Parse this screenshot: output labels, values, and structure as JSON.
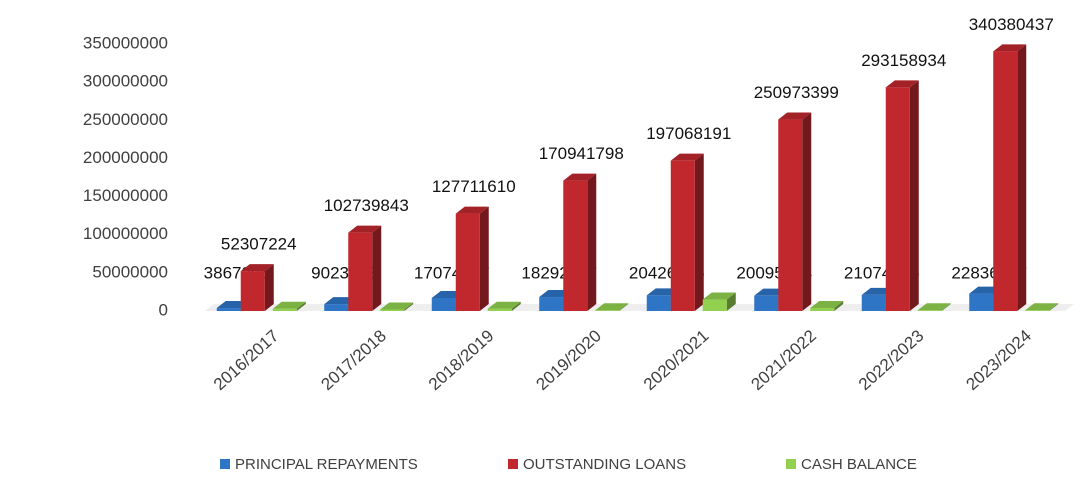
{
  "chart_data": {
    "type": "bar3d",
    "categories": [
      "2016/2017",
      "2017/2018",
      "2018/2019",
      "2019/2020",
      "2020/2021",
      "2021/2022",
      "2022/2023",
      "2023/2024"
    ],
    "series": [
      {
        "name": "PRINCIPAL REPAYMENTS",
        "color": "#2e75c6",
        "values": [
          3867295,
          9023663,
          17074337,
          18292917,
          20426286,
          20095314,
          21074466,
          22836477
        ]
      },
      {
        "name": "OUTSTANDING LOANS",
        "color": "#c0282e",
        "values": [
          52307224,
          102739843,
          127711610,
          170941798,
          197068191,
          250973399,
          293158934,
          340380437
        ]
      },
      {
        "name": "CASH BALANCE",
        "color": "#92d050",
        "values": [
          3000000,
          2000000,
          3000000,
          1000000,
          15000000,
          4000000,
          1000000,
          1000000
        ]
      }
    ],
    "ylim": [
      0,
      350000000
    ],
    "yticks": [
      0,
      50000000,
      100000000,
      150000000,
      200000000,
      250000000,
      300000000,
      350000000
    ],
    "legend": "bottom"
  }
}
